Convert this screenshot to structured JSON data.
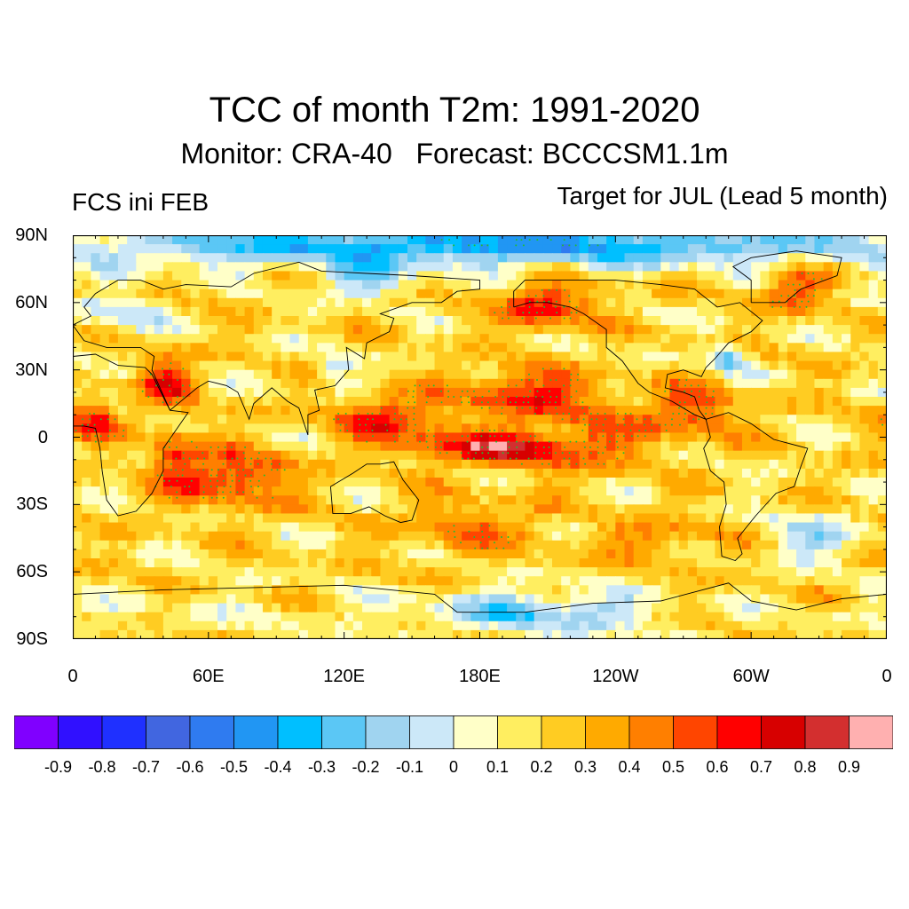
{
  "title": "TCC of month T2m: 1991-2020",
  "subtitle": "Monitor: CRA-40   Forecast: BCCCSM1.1m",
  "left_label": "FCS ini FEB",
  "right_label": "Target for JUL (Lead 5 month)",
  "map": {
    "projection": "cylindrical-equidistant",
    "lon_range": [
      0,
      360
    ],
    "lat_range": [
      -90,
      90
    ],
    "lat_ticks": [
      {
        "value": 90,
        "label": "90N"
      },
      {
        "value": 60,
        "label": "60N"
      },
      {
        "value": 30,
        "label": "30N"
      },
      {
        "value": 0,
        "label": "0"
      },
      {
        "value": -30,
        "label": "30S"
      },
      {
        "value": -60,
        "label": "60S"
      },
      {
        "value": -90,
        "label": "90S"
      }
    ],
    "lon_ticks": [
      {
        "value": 0,
        "label": "0"
      },
      {
        "value": 60,
        "label": "60E"
      },
      {
        "value": 120,
        "label": "120E"
      },
      {
        "value": 180,
        "label": "180E"
      },
      {
        "value": 240,
        "label": "120W"
      },
      {
        "value": 300,
        "label": "60W"
      },
      {
        "value": 360,
        "label": "0"
      }
    ],
    "field_regions": [
      {
        "name": "north-pole-low",
        "lon": 180,
        "lat": 87,
        "rlon": 190,
        "rlat": 5,
        "value": -0.35
      },
      {
        "name": "arctic-rim-low",
        "lon": 180,
        "lat": 80,
        "rlon": 190,
        "rlat": 6,
        "value": -0.15
      },
      {
        "name": "antarctica-low-pacific",
        "lon": 205,
        "lat": -78,
        "rlon": 50,
        "rlat": 10,
        "value": -0.2
      },
      {
        "name": "antarctica-band",
        "lon": 60,
        "lat": -80,
        "rlon": 80,
        "rlat": 8,
        "value": 0.12
      },
      {
        "name": "eq-pacific-high",
        "lon": 185,
        "lat": -5,
        "rlon": 35,
        "rlat": 7,
        "value": 0.7
      },
      {
        "name": "west-pacific-high",
        "lon": 140,
        "lat": 8,
        "rlon": 25,
        "rlat": 10,
        "value": 0.62
      },
      {
        "name": "north-pacific-high",
        "lon": 200,
        "lat": 20,
        "rlon": 30,
        "rlat": 10,
        "value": 0.62
      },
      {
        "name": "gulf-alaska-high",
        "lon": 210,
        "lat": 58,
        "rlon": 20,
        "rlat": 10,
        "value": 0.65
      },
      {
        "name": "central-pacific-mid",
        "lon": 230,
        "lat": 0,
        "rlon": 35,
        "rlat": 15,
        "value": 0.45
      },
      {
        "name": "south-indian-high",
        "lon": 70,
        "lat": -18,
        "rlon": 25,
        "rlat": 12,
        "value": 0.65
      },
      {
        "name": "arabia-high",
        "lon": 42,
        "lat": 25,
        "rlon": 12,
        "rlat": 12,
        "value": 0.6
      },
      {
        "name": "west-africa-high",
        "lon": 10,
        "lat": 8,
        "rlon": 12,
        "rlat": 10,
        "value": 0.55
      },
      {
        "name": "east-africa-high",
        "lon": 45,
        "lat": -8,
        "rlon": 10,
        "rlat": 12,
        "value": 0.55
      },
      {
        "name": "south-atlantic-low",
        "lon": 325,
        "lat": -45,
        "rlon": 20,
        "rlat": 10,
        "value": -0.1
      },
      {
        "name": "se-pacific-high",
        "lon": 260,
        "lat": -45,
        "rlon": 30,
        "rlat": 10,
        "value": 0.4
      },
      {
        "name": "sw-pacific-high",
        "lon": 175,
        "lat": -40,
        "rlon": 30,
        "rlat": 12,
        "value": 0.45
      },
      {
        "name": "greenland-high",
        "lon": 320,
        "lat": 65,
        "rlon": 15,
        "rlat": 10,
        "value": 0.55
      },
      {
        "name": "central-america-high",
        "lon": 275,
        "lat": 12,
        "rlon": 20,
        "rlat": 10,
        "value": 0.55
      },
      {
        "name": "siberia-low",
        "lon": 130,
        "lat": 70,
        "rlon": 20,
        "rlat": 8,
        "value": -0.15
      },
      {
        "name": "east-asia-low",
        "lon": 115,
        "lat": 30,
        "rlon": 8,
        "rlat": 6,
        "value": -0.1
      },
      {
        "name": "n-atlantic-low",
        "lon": 290,
        "lat": 35,
        "rlon": 8,
        "rlat": 6,
        "value": -0.2
      },
      {
        "name": "europe-mixed",
        "lon": 20,
        "lat": 55,
        "rlon": 20,
        "rlat": 10,
        "value": -0.05
      }
    ],
    "background_value": 0.2
  },
  "colorbar": {
    "colors": [
      "#8000ff",
      "#3010ff",
      "#1f30ff",
      "#4166e0",
      "#2f7bf0",
      "#2196f3",
      "#00bfff",
      "#5bc7f5",
      "#a0d4f0",
      "#cce8f8",
      "#ffffc8",
      "#ffee60",
      "#ffcc22",
      "#ffaa00",
      "#ff7f00",
      "#ff4500",
      "#ff0000",
      "#d70000",
      "#d32f2f",
      "#ffb0b0"
    ],
    "labels": [
      "-0.9",
      "-0.8",
      "-0.7",
      "-0.6",
      "-0.5",
      "-0.4",
      "-0.3",
      "-0.2",
      "-0.1",
      "0",
      "0.1",
      "0.2",
      "0.3",
      "0.4",
      "0.5",
      "0.6",
      "0.7",
      "0.8",
      "0.9"
    ]
  },
  "stipple_color": "#22bb33",
  "coast_color": "#000000"
}
